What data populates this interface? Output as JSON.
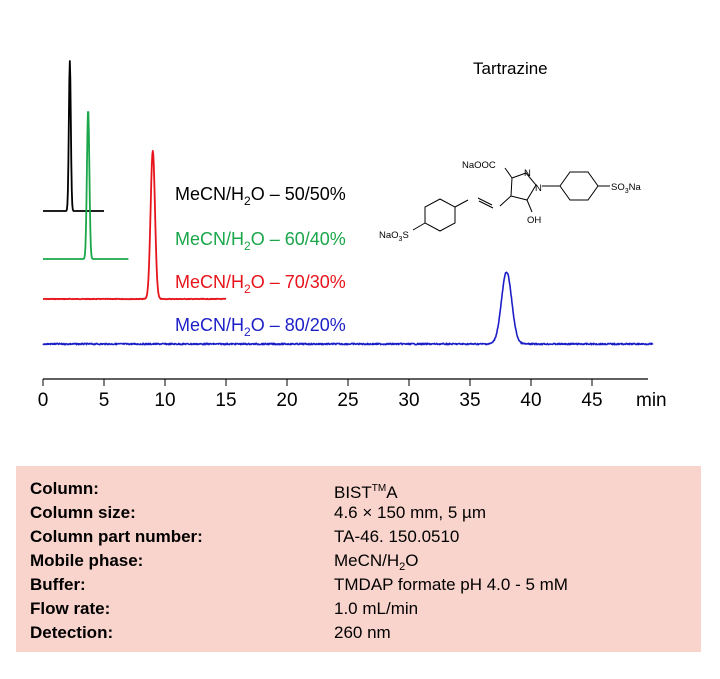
{
  "chart_data": {
    "type": "line",
    "compound": "Tartrazine",
    "xlabel": "min",
    "xlim": [
      0,
      50
    ],
    "xticks": [
      0,
      5,
      10,
      15,
      20,
      25,
      30,
      35,
      40,
      45
    ],
    "series": [
      {
        "name": "MeCN/H2O – 50/50%",
        "legend": {
          "pre": "MeCN/H",
          "sub": "2",
          "post": "O – 50/50%"
        },
        "color": "#000000",
        "x_start": 0,
        "x_end": 5,
        "peak_time": 2.2,
        "peak_height": 150,
        "peak_width": 0.08
      },
      {
        "name": "MeCN/H2O – 60/40%",
        "legend": {
          "pre": "MeCN/H",
          "sub": "2",
          "post": "O – 60/40%"
        },
        "color": "#1aa64a",
        "x_start": 0,
        "x_end": 7,
        "peak_time": 3.7,
        "peak_height": 150,
        "peak_width": 0.1
      },
      {
        "name": "MeCN/H2O – 70/30%",
        "legend": {
          "pre": "MeCN/H",
          "sub": "2",
          "post": "O – 70/30%"
        },
        "color": "#e8141b",
        "x_start": 0,
        "x_end": 15,
        "peak_time": 9.0,
        "peak_height": 148,
        "peak_width": 0.18
      },
      {
        "name": "MeCN/H2O – 80/20%",
        "legend": {
          "pre": "MeCN/H",
          "sub": "2",
          "post": "O – 80/20%"
        },
        "color": "#1c1fc7",
        "x_start": 0,
        "x_end": 50,
        "peak_time": 38.0,
        "peak_height": 72,
        "peak_width": 0.42
      }
    ]
  },
  "structure": {
    "labels": [
      "NaOOC",
      "N",
      "N",
      "SO",
      "3",
      "Na",
      "OH",
      "NaO",
      "3",
      "S"
    ]
  },
  "conditions": {
    "column": {
      "label": "Column:",
      "value": "BIST",
      "value_sup": "TM",
      "value_tail": "A"
    },
    "column_size": {
      "label": "Column size:",
      "value": "4.6 × 150 mm, 5 µm"
    },
    "part_number": {
      "label": "Column part number:",
      "value": "TA-46. 150.0510"
    },
    "mobile_phase": {
      "label": "Mobile phase:",
      "value_pre": "MeCN/H",
      "value_sub": "2",
      "value_post": "O"
    },
    "buffer": {
      "label": "Buffer:",
      "value": "TMDAP formate pH 4.0 - 5 mM"
    },
    "flow_rate": {
      "label": "Flow rate:",
      "value": "1.0 mL/min"
    },
    "detection": {
      "label": "Detection:",
      "value": "260 nm"
    }
  }
}
